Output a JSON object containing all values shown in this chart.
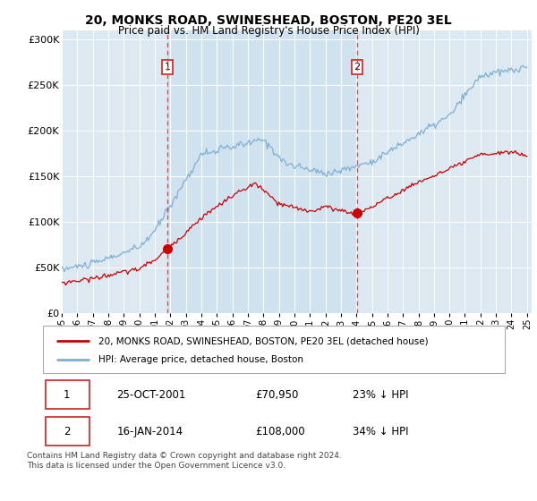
{
  "title": "20, MONKS ROAD, SWINESHEAD, BOSTON, PE20 3EL",
  "subtitle": "Price paid vs. HM Land Registry's House Price Index (HPI)",
  "legend_label_red": "20, MONKS ROAD, SWINESHEAD, BOSTON, PE20 3EL (detached house)",
  "legend_label_blue": "HPI: Average price, detached house, Boston",
  "transaction1_date": "25-OCT-2001",
  "transaction1_price": "£70,950",
  "transaction1_hpi": "23% ↓ HPI",
  "transaction2_date": "16-JAN-2014",
  "transaction2_price": "£108,000",
  "transaction2_hpi": "34% ↓ HPI",
  "footer": "Contains HM Land Registry data © Crown copyright and database right 2024.\nThis data is licensed under the Open Government Licence v3.0.",
  "red_color": "#cc0000",
  "blue_color": "#7eb0d4",
  "dashed_red": "#dd4444",
  "bg_color": "#dce8f2",
  "shade_color": "#c8dff0",
  "grid_color": "#ffffff",
  "ylim_min": 0,
  "ylim_max": 310000,
  "ytick_values": [
    0,
    50000,
    100000,
    150000,
    200000,
    250000,
    300000
  ],
  "ytick_labels": [
    "£0",
    "£50K",
    "£100K",
    "£150K",
    "£200K",
    "£250K",
    "£300K"
  ],
  "year_start": 1995,
  "year_end": 2025,
  "transaction1_year": 2001.82,
  "transaction2_year": 2014.05,
  "transaction1_price_val": 70950,
  "transaction2_price_val": 108000
}
